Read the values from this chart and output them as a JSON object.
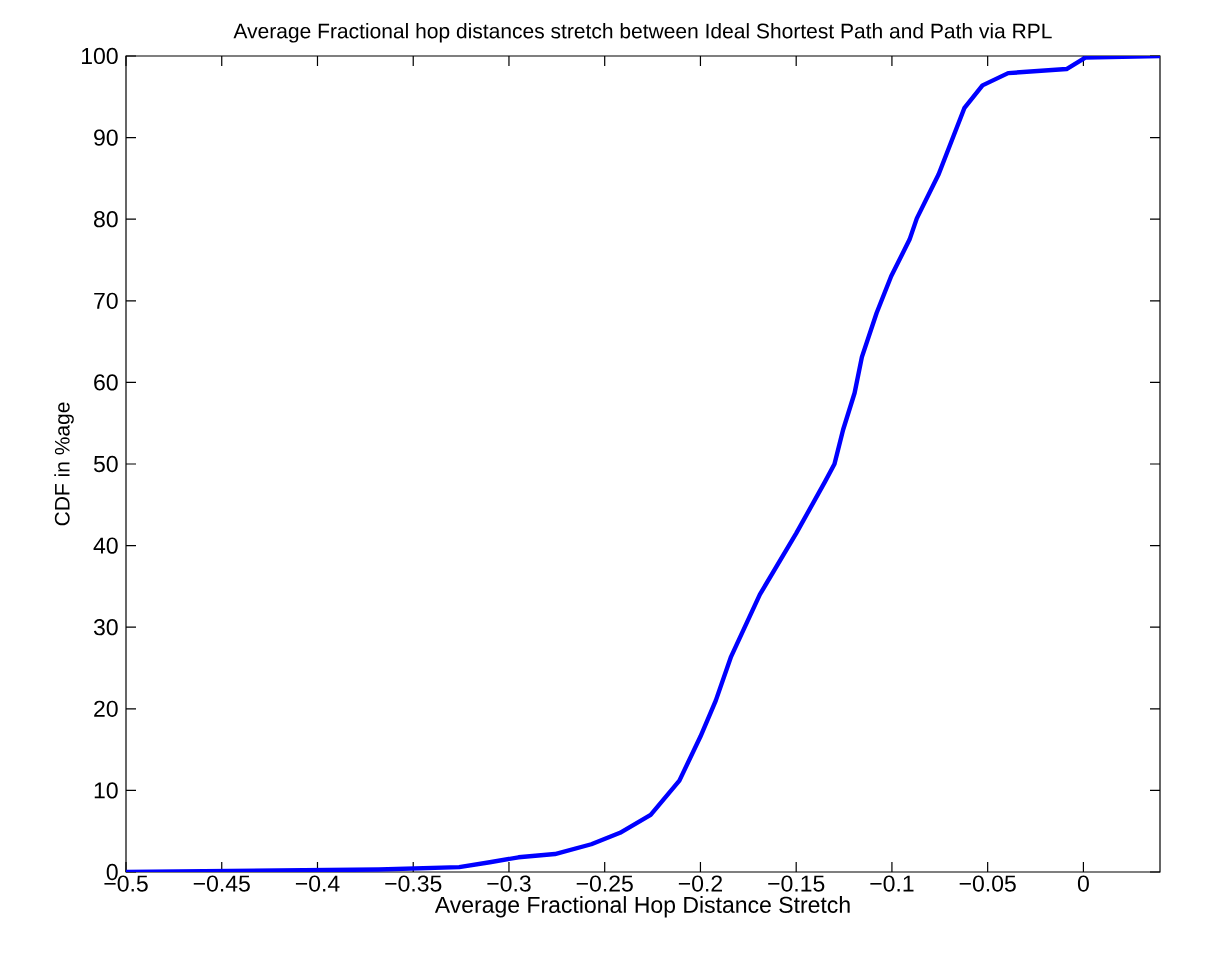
{
  "chart_data": {
    "type": "line",
    "title": "Average Fractional hop distances stretch between Ideal Shortest Path and Path via RPL",
    "xlabel": "Average Fractional Hop Distance Stretch",
    "ylabel": "CDF in %age",
    "x": [
      -0.5,
      -0.368,
      -0.326,
      -0.31,
      -0.295,
      -0.276,
      -0.257,
      -0.242,
      -0.226,
      -0.211,
      -0.2,
      -0.192,
      -0.184,
      -0.169,
      -0.15,
      -0.135,
      -0.13,
      -0.1255,
      -0.1195,
      -0.1157,
      -0.108,
      -0.1004,
      -0.0908,
      -0.087,
      -0.0756,
      -0.0622,
      -0.0527,
      -0.0393,
      -0.0088,
      0.001,
      0.04
    ],
    "series": [
      {
        "color": "#0000ff",
        "values": [
          0,
          0.3,
          0.6,
          1.2,
          1.8,
          2.2,
          3.4,
          4.8,
          7.0,
          11.2,
          16.6,
          21,
          26.4,
          34,
          41.5,
          47.8,
          50,
          54.2,
          58.7,
          63.1,
          68.5,
          73,
          77.5,
          80.1,
          85.5,
          93.6,
          96.4,
          97.9,
          98.4,
          99.8,
          100
        ]
      }
    ],
    "xlim": [
      -0.5,
      0.04
    ],
    "ylim": [
      0,
      100
    ],
    "xticks": [
      {
        "value": -0.5,
        "label": "−0.5"
      },
      {
        "value": -0.45,
        "label": "−0.45"
      },
      {
        "value": -0.4,
        "label": "−0.4"
      },
      {
        "value": -0.35,
        "label": "−0.35"
      },
      {
        "value": -0.3,
        "label": "−0.3"
      },
      {
        "value": -0.25,
        "label": "−0.25"
      },
      {
        "value": -0.2,
        "label": "−0.2"
      },
      {
        "value": -0.15,
        "label": "−0.15"
      },
      {
        "value": -0.1,
        "label": "−0.1"
      },
      {
        "value": -0.05,
        "label": "−0.05"
      },
      0
    ],
    "yticks": [
      0,
      10,
      20,
      30,
      40,
      50,
      60,
      70,
      80,
      90,
      100
    ]
  }
}
